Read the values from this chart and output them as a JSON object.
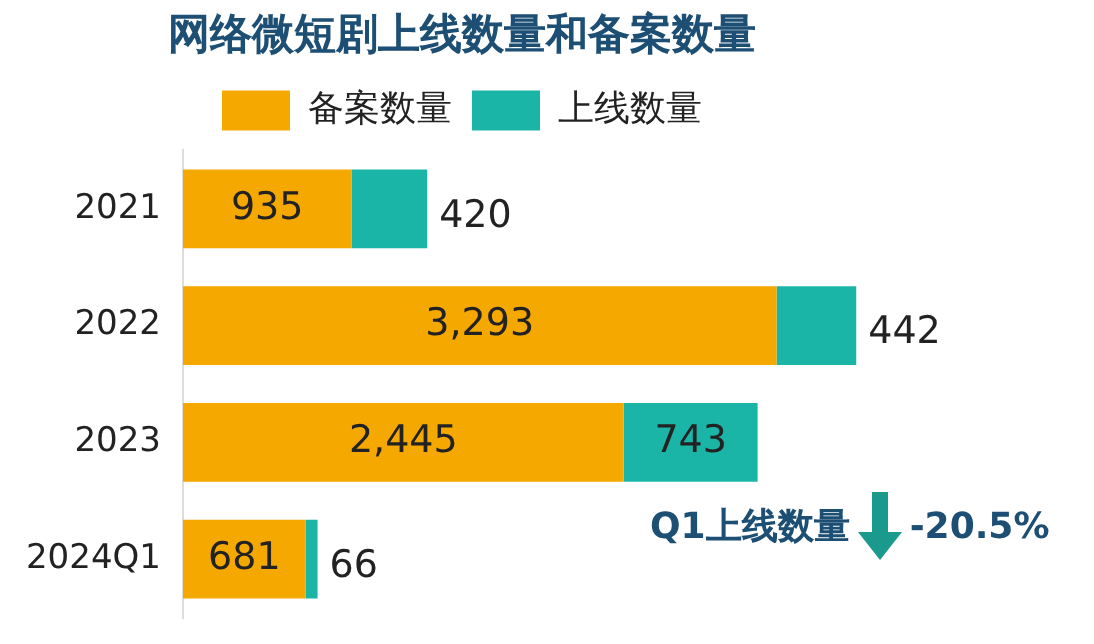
{
  "chart_data": {
    "type": "bar",
    "title": "网络微短剧上线数量和备案数量",
    "orientation": "horizontal",
    "stacked": true,
    "legend": "top",
    "grid": false,
    "categories": [
      "2021",
      "2022",
      "2023",
      "2024Q1"
    ],
    "series": [
      {
        "name": "备案数量",
        "color": "#f5a800",
        "values": [
          935,
          3293,
          2445,
          681
        ],
        "value_labels": [
          "935",
          "3,293",
          "2,445",
          "681"
        ]
      },
      {
        "name": "上线数量",
        "color": "#1bb5a8",
        "values": [
          420,
          442,
          743,
          66
        ],
        "value_labels": [
          "420",
          "442",
          "743",
          "66"
        ]
      }
    ],
    "annotations": [
      "Q1上线数量",
      "-20.5%"
    ]
  }
}
